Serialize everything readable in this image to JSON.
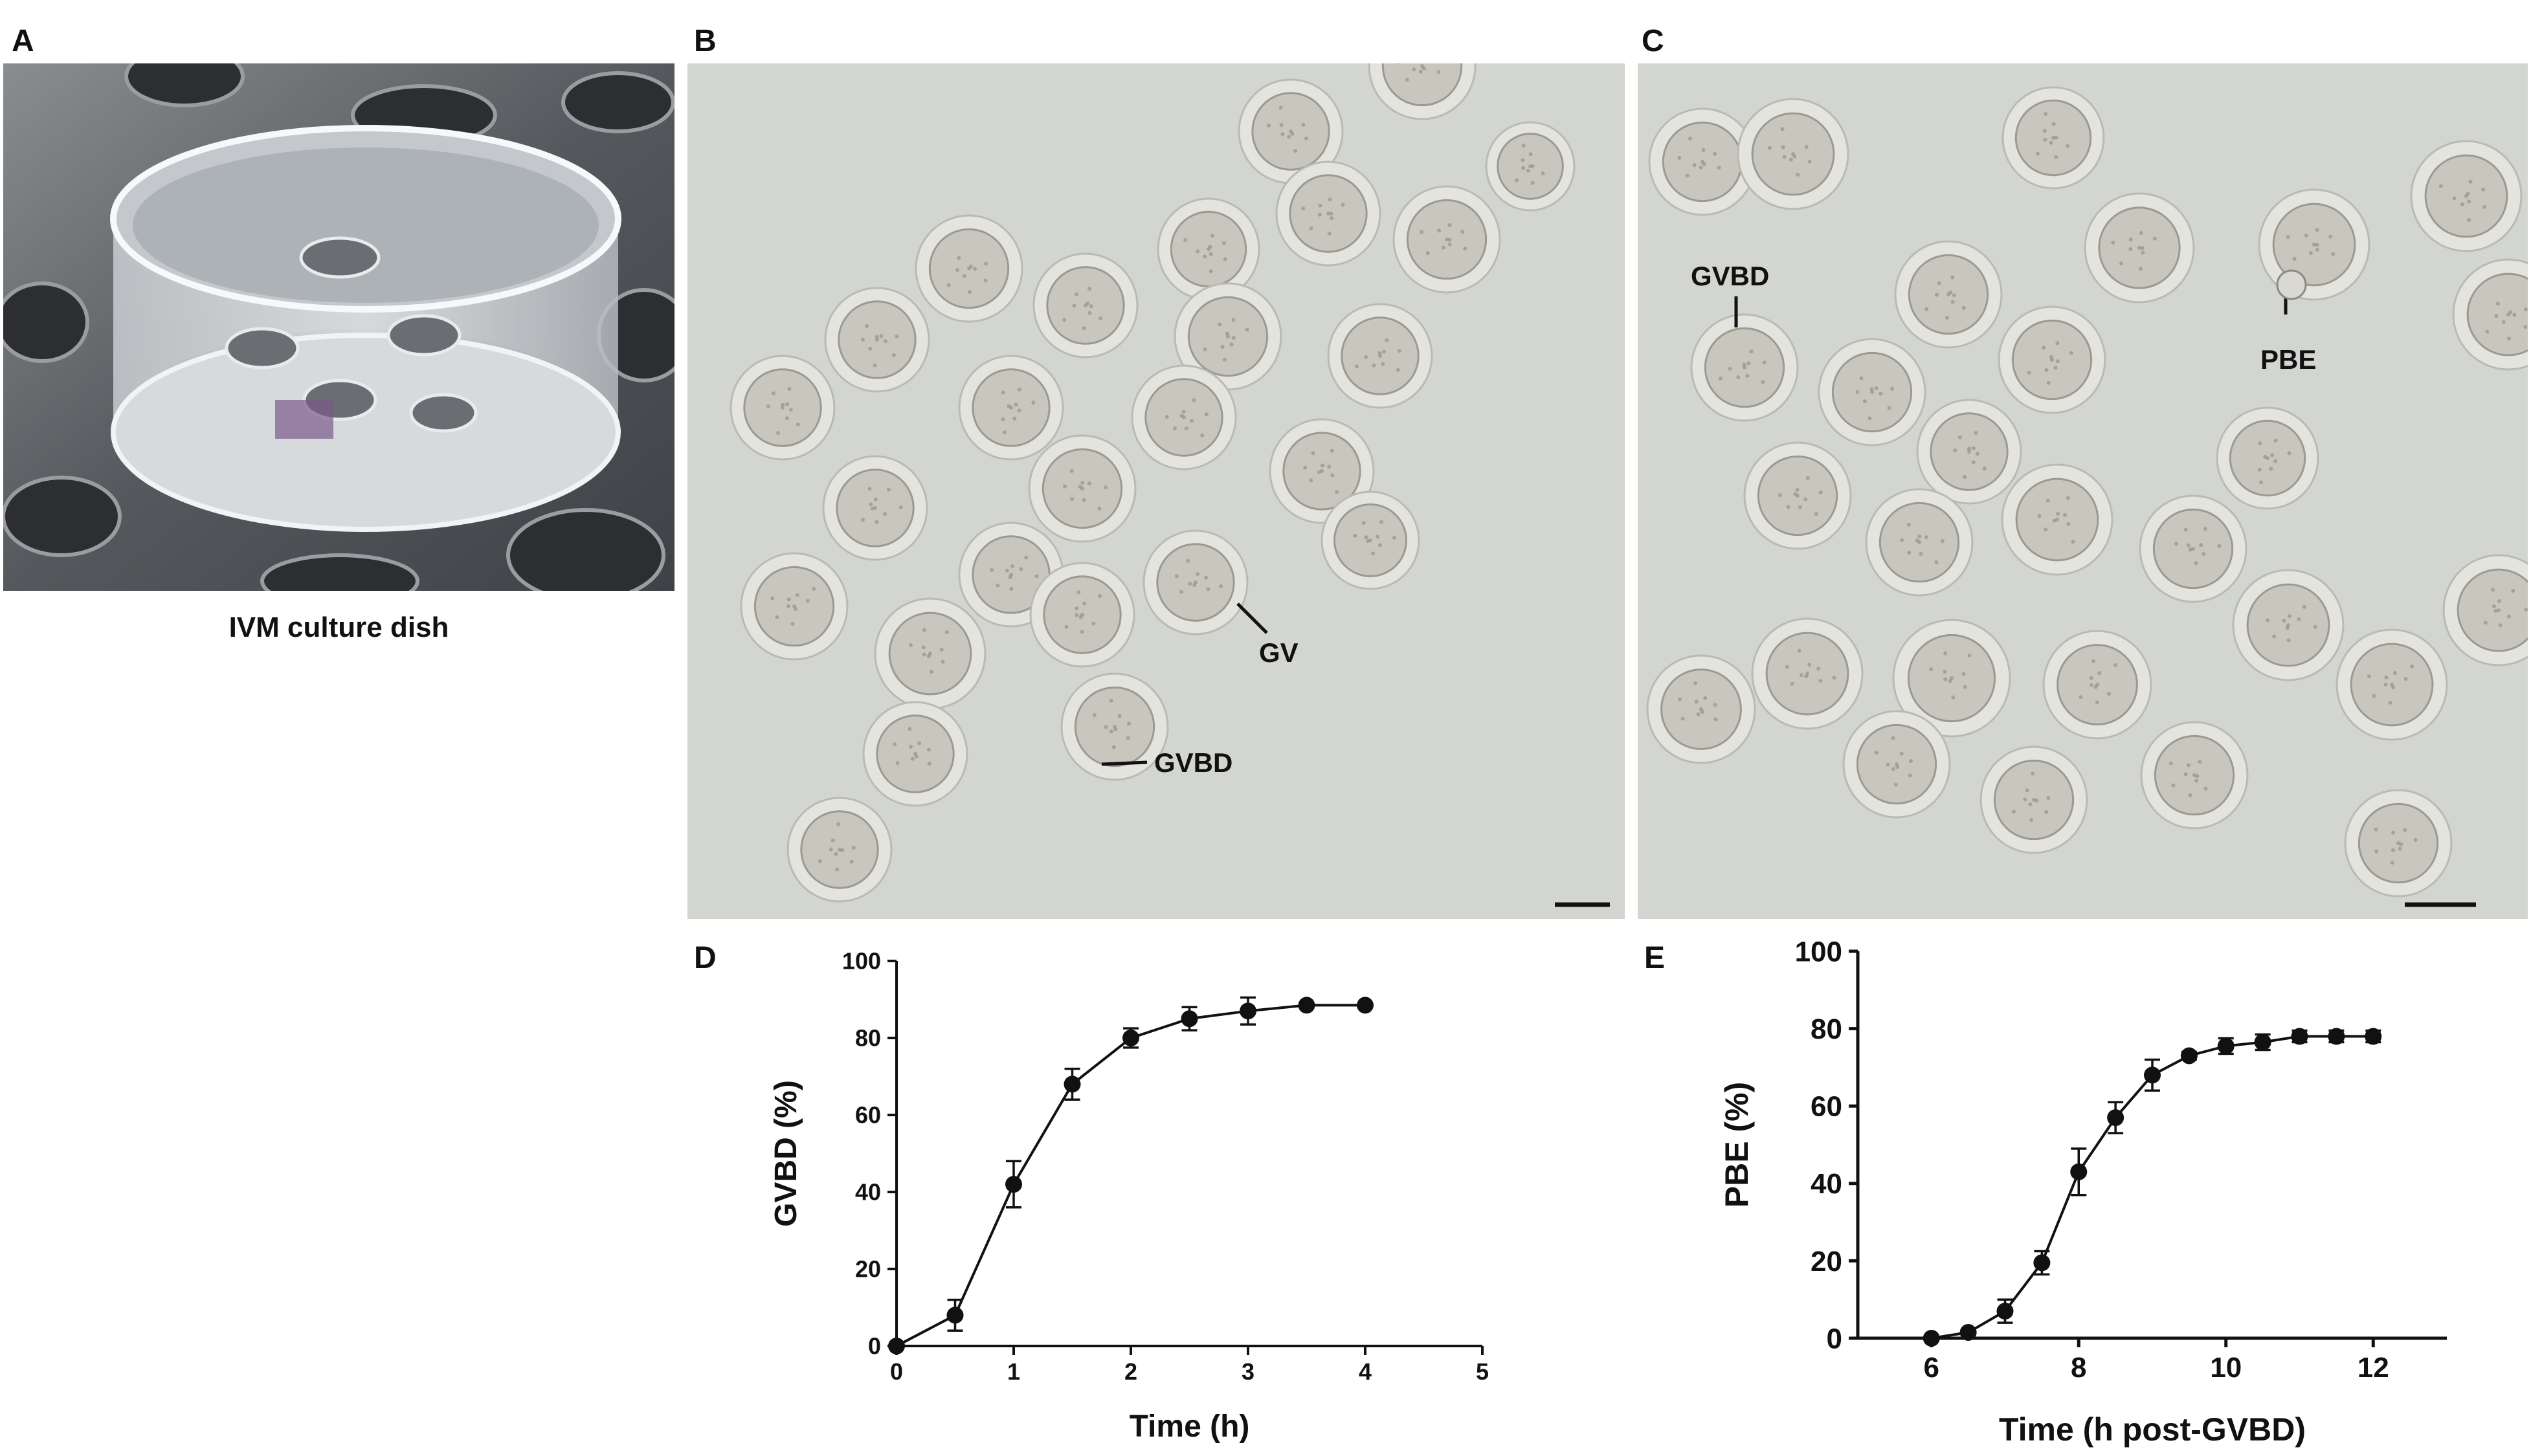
{
  "panels": {
    "a": {
      "letter": "A",
      "caption": "IVM culture dish"
    },
    "b": {
      "letter": "B",
      "labels": {
        "gv": "GV",
        "gvbd": "GVBD"
      }
    },
    "c": {
      "letter": "C",
      "labels": {
        "gvbd": "GVBD",
        "pbe": "PBE"
      }
    },
    "d": {
      "letter": "D"
    },
    "e": {
      "letter": "E"
    }
  },
  "colors": {
    "micro_bg": "#d3d5d1",
    "oocyte_fill": "#c8c6bd",
    "zona": "#e4e4df",
    "dish_bg": "#5b5e62",
    "axis": "#111111",
    "marker": "#111111"
  },
  "chart_data": [
    {
      "type": "line",
      "panel": "D",
      "xlabel": "Time (h)",
      "ylabel": "GVBD (%)",
      "xlim": [
        0,
        5
      ],
      "ylim": [
        0,
        100
      ],
      "xticks": [
        0,
        1,
        2,
        3,
        4,
        5
      ],
      "yticks": [
        0,
        20,
        40,
        60,
        80,
        100
      ],
      "grid": false,
      "series": [
        {
          "x": [
            0,
            0.5,
            1,
            1.5,
            2,
            2.5,
            3,
            3.5,
            4
          ],
          "y": [
            0,
            8,
            42,
            68,
            80,
            85,
            87,
            88.5,
            88.5
          ],
          "error": [
            0,
            4,
            6,
            4,
            2.5,
            3,
            3.5,
            0,
            0
          ]
        }
      ]
    },
    {
      "type": "line",
      "panel": "E",
      "xlabel": "Time (h post-GVBD)",
      "ylabel": "PBE (%)",
      "xlim": [
        5,
        13
      ],
      "ylim": [
        0,
        100
      ],
      "xticks": [
        6,
        8,
        10,
        12
      ],
      "yticks": [
        0,
        20,
        40,
        60,
        80,
        100
      ],
      "grid": false,
      "series": [
        {
          "x": [
            6,
            6.5,
            7,
            7.5,
            8,
            8.5,
            9,
            9.5,
            10,
            10.5,
            11,
            11.5,
            12
          ],
          "y": [
            0,
            1.5,
            7,
            19.5,
            43,
            57,
            68,
            73,
            75.5,
            76.5,
            78,
            78,
            78
          ],
          "error": [
            0,
            0,
            3,
            3,
            6,
            4,
            4,
            1,
            2,
            2,
            1.5,
            1.5,
            1.5
          ]
        }
      ]
    }
  ]
}
